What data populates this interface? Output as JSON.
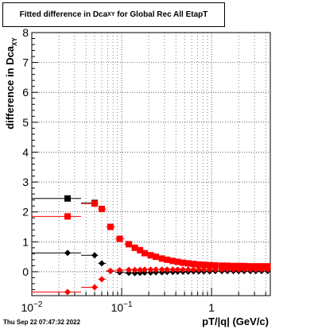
{
  "title": {
    "main": "Fitted difference in Dca",
    "subscript": "XY",
    "suffix": "for Global Rec All EtapT"
  },
  "timestamp": "Thu Sep 22 07:47:32 2022",
  "chart_data": {
    "type": "scatter",
    "title": "Fitted difference in Dca_XY for Global Rec All EtapT",
    "xlabel": "pT/|q| (GeV/c)",
    "ylabel": "difference in Dca_XY",
    "x_scale": "log",
    "xlim": [
      0.01,
      4.5
    ],
    "ylim": [
      -0.8,
      8
    ],
    "grid": true,
    "x_tick_labels": [
      "10^-2",
      "10^-1",
      "1"
    ],
    "y_tick_labels": [
      "0",
      "1",
      "2",
      "3",
      "4",
      "5",
      "6",
      "7",
      "8"
    ],
    "series": [
      {
        "marker": "square",
        "color": "#000000",
        "points": [
          [
            0.025,
            2.45
          ],
          [
            0.05,
            2.3
          ]
        ]
      },
      {
        "marker": "square",
        "color": "#ff0000",
        "points": [
          [
            0.025,
            1.85
          ],
          [
            0.05,
            2.28
          ],
          [
            0.06,
            2.1
          ],
          [
            0.075,
            1.5
          ],
          [
            0.095,
            1.1
          ],
          [
            0.12,
            0.92
          ],
          [
            0.14,
            0.8
          ],
          [
            0.16,
            0.72
          ],
          [
            0.18,
            0.62
          ],
          [
            0.21,
            0.55
          ],
          [
            0.24,
            0.5
          ],
          [
            0.28,
            0.44
          ],
          [
            0.32,
            0.4
          ],
          [
            0.37,
            0.36
          ],
          [
            0.42,
            0.33
          ],
          [
            0.48,
            0.3
          ],
          [
            0.55,
            0.28
          ],
          [
            0.63,
            0.26
          ],
          [
            0.72,
            0.24
          ],
          [
            0.82,
            0.23
          ],
          [
            0.95,
            0.22
          ],
          [
            1.1,
            0.21
          ],
          [
            1.3,
            0.2
          ],
          [
            1.5,
            0.2
          ],
          [
            1.75,
            0.19
          ],
          [
            2.0,
            0.19
          ],
          [
            2.3,
            0.19
          ],
          [
            2.7,
            0.18
          ],
          [
            3.1,
            0.18
          ],
          [
            3.6,
            0.18
          ],
          [
            4.2,
            0.18
          ]
        ]
      },
      {
        "marker": "diamond",
        "color": "#000000",
        "points": [
          [
            0.025,
            0.63
          ],
          [
            0.05,
            0.55
          ],
          [
            0.06,
            0.28
          ],
          [
            0.075,
            0.02
          ],
          [
            0.095,
            -0.02
          ],
          [
            0.12,
            -0.04
          ],
          [
            0.14,
            -0.05
          ],
          [
            0.16,
            -0.04
          ],
          [
            0.18,
            -0.03
          ],
          [
            0.21,
            -0.03
          ],
          [
            0.24,
            -0.02
          ],
          [
            0.28,
            -0.02
          ],
          [
            0.32,
            -0.01
          ],
          [
            0.37,
            -0.01
          ],
          [
            0.42,
            0.0
          ],
          [
            0.48,
            0.0
          ],
          [
            0.55,
            0.0
          ],
          [
            0.63,
            0.01
          ],
          [
            0.72,
            0.01
          ],
          [
            0.82,
            0.01
          ],
          [
            0.95,
            0.01
          ],
          [
            1.1,
            0.02
          ],
          [
            1.3,
            0.02
          ],
          [
            1.5,
            0.02
          ],
          [
            1.75,
            0.02
          ],
          [
            2.0,
            0.02
          ],
          [
            2.3,
            0.02
          ],
          [
            2.7,
            0.02
          ],
          [
            3.1,
            0.02
          ],
          [
            3.6,
            0.02
          ],
          [
            4.2,
            0.02
          ]
        ]
      },
      {
        "marker": "diamond",
        "color": "#ff0000",
        "points": [
          [
            0.025,
            -0.68
          ],
          [
            0.05,
            -0.52
          ],
          [
            0.06,
            -0.25
          ],
          [
            0.075,
            0.03
          ],
          [
            0.095,
            0.05
          ],
          [
            0.12,
            0.06
          ],
          [
            0.14,
            0.06
          ],
          [
            0.16,
            0.06
          ],
          [
            0.18,
            0.07
          ],
          [
            0.21,
            0.07
          ],
          [
            0.24,
            0.07
          ],
          [
            0.28,
            0.07
          ],
          [
            0.32,
            0.07
          ],
          [
            0.37,
            0.07
          ],
          [
            0.42,
            0.07
          ],
          [
            0.48,
            0.07
          ],
          [
            0.55,
            0.07
          ],
          [
            0.63,
            0.07
          ],
          [
            0.72,
            0.07
          ],
          [
            0.82,
            0.07
          ],
          [
            0.95,
            0.07
          ],
          [
            1.1,
            0.07
          ],
          [
            1.3,
            0.07
          ],
          [
            1.5,
            0.07
          ],
          [
            1.75,
            0.07
          ],
          [
            2.0,
            0.07
          ],
          [
            2.3,
            0.07
          ],
          [
            2.7,
            0.07
          ],
          [
            3.1,
            0.07
          ],
          [
            3.6,
            0.07
          ],
          [
            4.2,
            0.07
          ]
        ]
      }
    ]
  }
}
